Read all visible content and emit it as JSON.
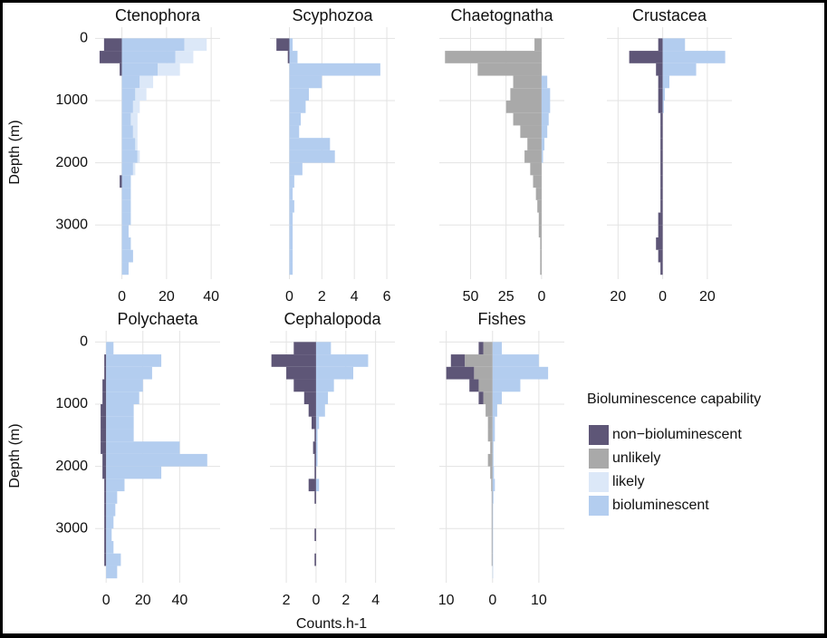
{
  "figure": {
    "ylabel": "Depth (m)",
    "xlabel": "Counts.h-1",
    "legend": {
      "title": "Bioluminescence capability",
      "items": [
        {
          "name": "non−bioluminescent",
          "color": "#5e5677"
        },
        {
          "name": "unlikely",
          "color": "#a9a9a9"
        },
        {
          "name": "likely",
          "color": "#dce8f8"
        },
        {
          "name": "bioluminescent",
          "color": "#b3cdef"
        }
      ]
    }
  },
  "chart_data": [
    {
      "type": "histogram",
      "title": "Ctenophora",
      "bins": [
        0,
        200,
        400,
        600,
        800,
        1000,
        1200,
        1400,
        1600,
        1800,
        2000,
        2200,
        2400,
        2600,
        2800,
        3000,
        3200,
        3400,
        3600,
        3800
      ],
      "series": [
        {
          "name": "non−bioluminescent",
          "values": [
            -8,
            -10,
            -1,
            0,
            0,
            0,
            0,
            0,
            0,
            0,
            0,
            -1,
            0,
            0,
            0,
            0,
            0,
            0,
            0
          ]
        },
        {
          "name": "bioluminescent",
          "values": [
            28,
            24,
            16,
            8,
            6,
            5,
            4,
            5,
            6,
            7,
            5,
            4,
            4,
            4,
            4,
            3,
            4,
            5,
            3
          ]
        },
        {
          "name": "likely",
          "values": [
            10,
            8,
            10,
            6,
            5,
            3,
            3,
            2,
            1,
            1,
            1,
            0,
            0,
            0,
            0,
            0,
            0,
            0,
            0
          ]
        }
      ],
      "xlim": [
        -12,
        44
      ],
      "xticks": [
        0,
        20,
        40
      ],
      "ylim": [
        -180,
        3870
      ],
      "yticks": [
        0,
        1000,
        2000,
        3000
      ],
      "y_inverted": true,
      "y_tick_labels": true,
      "grid": true
    },
    {
      "type": "histogram",
      "title": "Scyphozoa",
      "bins": [
        0,
        200,
        400,
        600,
        800,
        1000,
        1200,
        1400,
        1600,
        1800,
        2000,
        2200,
        2400,
        2600,
        2800,
        3000,
        3200,
        3400,
        3600,
        3800
      ],
      "series": [
        {
          "name": "non−bioluminescent",
          "values": [
            -0.8,
            -0.1,
            0,
            0,
            0,
            0,
            0,
            0,
            0,
            0,
            0,
            0,
            0,
            0,
            0,
            0,
            0,
            0,
            0
          ]
        },
        {
          "name": "bioluminescent",
          "values": [
            0.2,
            0.5,
            5.6,
            2,
            1.2,
            1,
            0.7,
            0.6,
            2.5,
            2.8,
            0.8,
            0.3,
            0.2,
            0.3,
            0.2,
            0.2,
            0.2,
            0.2,
            0.2
          ]
        }
      ],
      "xlim": [
        -1.2,
        6.5
      ],
      "xticks": [
        0,
        2,
        4,
        6
      ],
      "ylim": [
        -180,
        3870
      ],
      "yticks": [
        0,
        1000,
        2000,
        3000
      ],
      "y_inverted": true,
      "y_tick_labels": false,
      "grid": true
    },
    {
      "type": "histogram",
      "title": "Chaetognatha",
      "bins": [
        0,
        200,
        400,
        600,
        800,
        1000,
        1200,
        1400,
        1600,
        1800,
        2000,
        2200,
        2400,
        2600,
        2800,
        3000,
        3200,
        3400,
        3600,
        3800
      ],
      "series": [
        {
          "name": "unlikely",
          "values": [
            -5,
            -68,
            -45,
            -20,
            -22,
            -25,
            -20,
            -15,
            -10,
            -12,
            -8,
            -6,
            -4,
            -3,
            -2,
            -2,
            -1,
            -1,
            -1
          ]
        },
        {
          "name": "bioluminescent",
          "values": [
            0,
            0,
            0,
            4,
            6,
            6,
            5,
            4,
            2,
            1,
            0,
            0,
            0,
            0,
            0,
            0,
            0,
            0,
            0
          ]
        }
      ],
      "xlim": [
        -72,
        16
      ],
      "xticks": [
        {
          "value": -50,
          "label": "50"
        },
        {
          "value": -25,
          "label": "25"
        },
        0
      ],
      "ylim": [
        -180,
        3870
      ],
      "yticks": [
        0,
        1000,
        2000,
        3000
      ],
      "y_inverted": true,
      "y_tick_labels": false,
      "grid": true
    },
    {
      "type": "histogram",
      "title": "Crustacea",
      "bins": [
        0,
        200,
        400,
        600,
        800,
        1000,
        1200,
        1400,
        1600,
        1800,
        2000,
        2200,
        2400,
        2600,
        2800,
        3000,
        3200,
        3400,
        3600,
        3800
      ],
      "series": [
        {
          "name": "non−bioluminescent",
          "values": [
            -2,
            -15,
            -3,
            -2,
            -2,
            -2,
            -1,
            -1,
            -1,
            -1,
            -1,
            -1,
            -1,
            -1,
            -2,
            -2,
            -3,
            -2,
            -1
          ]
        },
        {
          "name": "bioluminescent",
          "values": [
            10,
            28,
            15,
            3,
            1,
            0.5,
            0,
            0,
            0,
            0,
            0,
            0,
            0,
            0,
            0,
            0,
            0,
            0,
            0
          ]
        }
      ],
      "xlim": [
        -25,
        31
      ],
      "xticks": [
        {
          "value": -20,
          "label": "20"
        },
        0,
        20
      ],
      "ylim": [
        -180,
        3870
      ],
      "yticks": [
        0,
        1000,
        2000,
        3000
      ],
      "y_inverted": true,
      "y_tick_labels": false,
      "grid": true
    },
    {
      "type": "histogram",
      "title": "Polychaeta",
      "bins": [
        0,
        200,
        400,
        600,
        800,
        1000,
        1200,
        1400,
        1600,
        1800,
        2000,
        2200,
        2400,
        2600,
        2800,
        3000,
        3200,
        3400,
        3600,
        3800
      ],
      "series": [
        {
          "name": "non−bioluminescent",
          "values": [
            0,
            -1,
            -1,
            -2,
            -2,
            -3,
            -3,
            -3,
            -3,
            -2,
            -2,
            -1,
            -1,
            -1,
            -1,
            -1,
            -1,
            -1,
            0
          ]
        },
        {
          "name": "bioluminescent",
          "values": [
            4,
            30,
            25,
            20,
            18,
            15,
            15,
            15,
            40,
            55,
            30,
            10,
            6,
            5,
            4,
            3,
            4,
            8,
            6
          ]
        }
      ],
      "xlim": [
        -6,
        62
      ],
      "xticks": [
        0,
        20,
        40
      ],
      "ylim": [
        -180,
        3870
      ],
      "yticks": [
        0,
        1000,
        2000,
        3000
      ],
      "y_inverted": true,
      "y_tick_labels": true,
      "grid": true
    },
    {
      "type": "histogram",
      "title": "Cephalopoda",
      "bins": [
        0,
        200,
        400,
        600,
        800,
        1000,
        1200,
        1400,
        1600,
        1800,
        2000,
        2200,
        2400,
        2600,
        2800,
        3000,
        3200,
        3400,
        3600,
        3800
      ],
      "series": [
        {
          "name": "non−bioluminescent",
          "values": [
            -1.5,
            -3,
            -2,
            -1.5,
            -0.8,
            -0.5,
            -0.3,
            -0.1,
            -0.2,
            -0.1,
            -0.1,
            -0.5,
            -0.1,
            0,
            0,
            -0.1,
            0,
            -0.1,
            0
          ]
        },
        {
          "name": "bioluminescent",
          "values": [
            1,
            3.5,
            2.5,
            1.2,
            0.8,
            0.6,
            0.2,
            0.1,
            0.1,
            0.1,
            0,
            0.2,
            0,
            0,
            0,
            0,
            0,
            0,
            0
          ]
        }
      ],
      "xlim": [
        -3.1,
        5.3
      ],
      "xticks": [
        {
          "value": -2,
          "label": "2"
        },
        0,
        2,
        4
      ],
      "ylim": [
        -180,
        3870
      ],
      "yticks": [
        0,
        1000,
        2000,
        3000
      ],
      "y_inverted": true,
      "y_tick_labels": false,
      "grid": true
    },
    {
      "type": "histogram",
      "title": "Fishes",
      "bins": [
        0,
        200,
        400,
        600,
        800,
        1000,
        1200,
        1400,
        1600,
        1800,
        2000,
        2200,
        2400,
        2600,
        2800,
        3000,
        3200,
        3400,
        3600,
        3800
      ],
      "series": [
        {
          "name": "unlikely",
          "values": [
            -2,
            -6,
            -4,
            -3,
            -2,
            -1.5,
            -1,
            -1,
            -0.5,
            -1,
            -0.5,
            -0.3,
            -0.2,
            -0.2,
            -0.2,
            -0.2,
            -0.2,
            -0.2,
            0
          ]
        },
        {
          "name": "non−bioluminescent",
          "values": [
            -1,
            -3,
            -6,
            -2,
            -1,
            0,
            0,
            0,
            0,
            0,
            0,
            0,
            0,
            0,
            0,
            0,
            0,
            0,
            0
          ]
        },
        {
          "name": "bioluminescent",
          "values": [
            2,
            10,
            12,
            6,
            2,
            1,
            0.5,
            0.5,
            0.2,
            0.2,
            0.3,
            0.5,
            0.2,
            0.1,
            0.1,
            0.1,
            0.1,
            0.1,
            0.1
          ]
        }
      ],
      "xlim": [
        -11.5,
        15.5
      ],
      "xticks": [
        {
          "value": -10,
          "label": "10"
        },
        0,
        10
      ],
      "ylim": [
        -180,
        3870
      ],
      "yticks": [
        0,
        1000,
        2000,
        3000
      ],
      "y_inverted": true,
      "y_tick_labels": false,
      "grid": true
    }
  ]
}
